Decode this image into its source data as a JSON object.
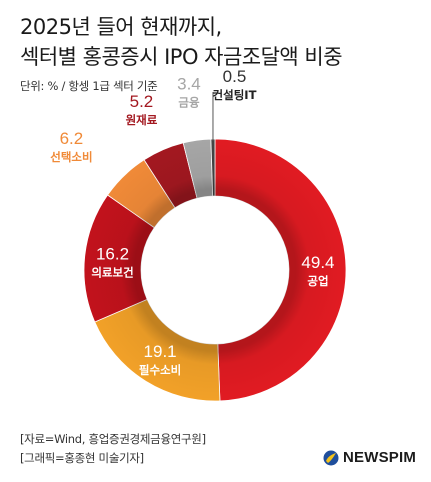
{
  "header": {
    "title_line1": "2025년 들어 현재까지,",
    "title_line2": "섹터별 홍콩증시 IPO 자금조달액 비중",
    "unit": "단위: % / 항셍 1급 섹터 기준"
  },
  "footer": {
    "source": "[자료=Wind, 흥업증권경제금융연구원]",
    "credit": "[그래픽=홍종현 미술기자]"
  },
  "logo": {
    "text": "NEWSPIM",
    "icon": "newspim-logo-icon"
  },
  "chart_data": {
    "type": "donut",
    "title": "2025년 들어 현재까지, 섹터별 홍콩증시 IPO 자금조달액 비중",
    "unit": "%",
    "slices": [
      {
        "label": "공업",
        "value": 49.4,
        "color": "#e11b22"
      },
      {
        "label": "필수소비",
        "value": 19.1,
        "color": "#f2a128"
      },
      {
        "label": "의료보건",
        "value": 16.2,
        "color": "#c2121c"
      },
      {
        "label": "선택소비",
        "value": 6.2,
        "color": "#f08a38"
      },
      {
        "label": "원재료",
        "value": 5.2,
        "color": "#a31820"
      },
      {
        "label": "금융",
        "value": 3.4,
        "color": "#a6a6a6"
      },
      {
        "label": "컨설팅IT",
        "value": 0.5,
        "color": "#444444"
      }
    ]
  }
}
